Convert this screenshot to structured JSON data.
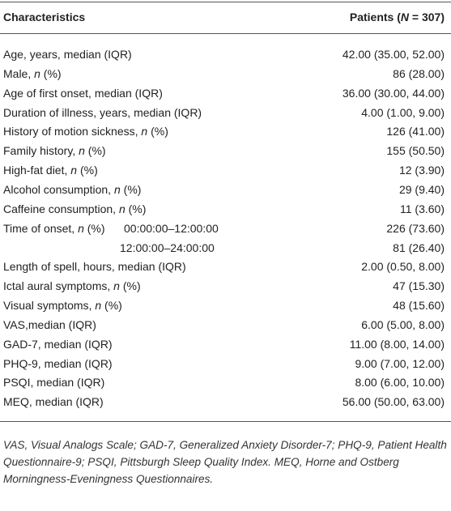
{
  "table": {
    "header": {
      "label": [
        "Characteristics"
      ],
      "value": [
        "Patients (",
        "N",
        " = 307)"
      ]
    },
    "rows": [
      {
        "label": [
          "Age, years, median (IQR)"
        ],
        "value": "42.00 (35.00, 52.00)"
      },
      {
        "label": [
          "Male, ",
          "n",
          " (%)"
        ],
        "value": "86 (28.00)"
      },
      {
        "label": [
          "Age of first onset, median (IQR)"
        ],
        "value": "36.00 (30.00, 44.00)"
      },
      {
        "label": [
          "Duration of illness, years, median (IQR)"
        ],
        "value": "4.00 (1.00, 9.00)"
      },
      {
        "label": [
          "History of motion sickness, ",
          "n",
          " (%)"
        ],
        "value": "126 (41.00)"
      },
      {
        "label": [
          "Family history, ",
          "n",
          " (%)"
        ],
        "value": "155 (50.50)"
      },
      {
        "label": [
          "High-fat diet, ",
          "n",
          " (%)"
        ],
        "value": "12 (3.90)"
      },
      {
        "label": [
          "Alcohol consumption, ",
          "n",
          " (%)"
        ],
        "value": "29 (9.40)"
      },
      {
        "label": [
          "Caffeine consumption, ",
          "n",
          " (%)"
        ],
        "value": "11 (3.60)"
      },
      {
        "label": [
          "Time of onset, ",
          "n",
          " (%)"
        ],
        "sub": "00:00:00–12:00:00",
        "value": "226 (73.60)"
      },
      {
        "sub": "12:00:00–24:00:00",
        "value": "81 (26.40)"
      },
      {
        "label": [
          "Length of spell, hours, median (IQR)"
        ],
        "value": "2.00 (0.50, 8.00)"
      },
      {
        "label": [
          "Ictal aural symptoms, ",
          "n",
          " (%)"
        ],
        "value": "47 (15.30)"
      },
      {
        "label": [
          "Visual symptoms, ",
          "n",
          " (%)"
        ],
        "value": "48 (15.60)"
      },
      {
        "label": [
          "VAS,median (IQR)"
        ],
        "value": "6.00 (5.00, 8.00)"
      },
      {
        "label": [
          "GAD-7, median (IQR)"
        ],
        "value": "11.00 (8.00, 14.00)"
      },
      {
        "label": [
          "PHQ-9, median (IQR)"
        ],
        "value": "9.00 (7.00, 12.00)"
      },
      {
        "label": [
          "PSQI, median (IQR)"
        ],
        "value": "8.00 (6.00, 10.00)"
      },
      {
        "label": [
          "MEQ, median (IQR)"
        ],
        "value": "56.00 (50.00, 63.00)"
      }
    ],
    "footnote": "VAS, Visual Analogs Scale; GAD-7, Generalized Anxiety Disorder-7; PHQ-9, Patient Health Questionnaire-9; PSQI, Pittsburgh Sleep Quality Index. MEQ, Horne and Ostberg Morningness-Eveningness Questionnaires."
  }
}
